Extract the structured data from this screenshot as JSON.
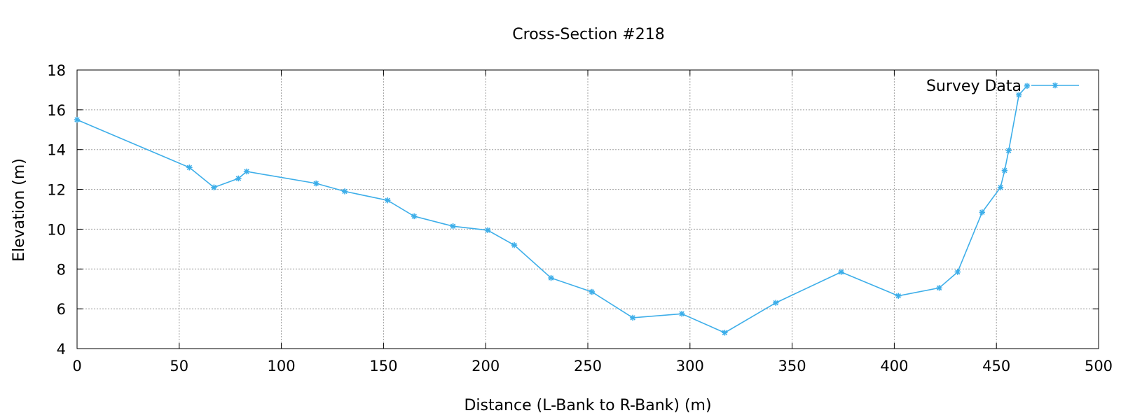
{
  "chart_data": {
    "type": "line",
    "title": "Cross-Section #218",
    "xlabel": "Distance (L-Bank to R-Bank) (m)",
    "ylabel": "Elevation (m)",
    "xlim": [
      0,
      500
    ],
    "ylim": [
      4,
      18
    ],
    "x_ticks": [
      0,
      50,
      100,
      150,
      200,
      250,
      300,
      350,
      400,
      450,
      500
    ],
    "y_ticks": [
      4,
      6,
      8,
      10,
      12,
      14,
      16,
      18
    ],
    "grid": true,
    "legend_position": "top-right",
    "series": [
      {
        "name": "Survey Data",
        "color": "#3daee9",
        "marker": "asterisk",
        "points": [
          [
            0,
            15.5
          ],
          [
            55,
            13.1
          ],
          [
            67,
            12.1
          ],
          [
            79,
            12.55
          ],
          [
            83,
            12.9
          ],
          [
            117,
            12.3
          ],
          [
            131,
            11.9
          ],
          [
            152,
            11.45
          ],
          [
            165,
            10.65
          ],
          [
            184,
            10.15
          ],
          [
            201,
            9.95
          ],
          [
            214,
            9.2
          ],
          [
            232,
            7.55
          ],
          [
            252,
            6.85
          ],
          [
            272,
            5.55
          ],
          [
            296,
            5.75
          ],
          [
            317,
            4.8
          ],
          [
            342,
            6.3
          ],
          [
            374,
            7.85
          ],
          [
            402,
            6.65
          ],
          [
            422,
            7.05
          ],
          [
            431,
            7.85
          ],
          [
            443,
            10.85
          ],
          [
            452,
            12.1
          ],
          [
            454,
            12.95
          ],
          [
            456,
            13.95
          ],
          [
            461,
            16.75
          ],
          [
            465,
            17.2
          ]
        ]
      }
    ]
  }
}
